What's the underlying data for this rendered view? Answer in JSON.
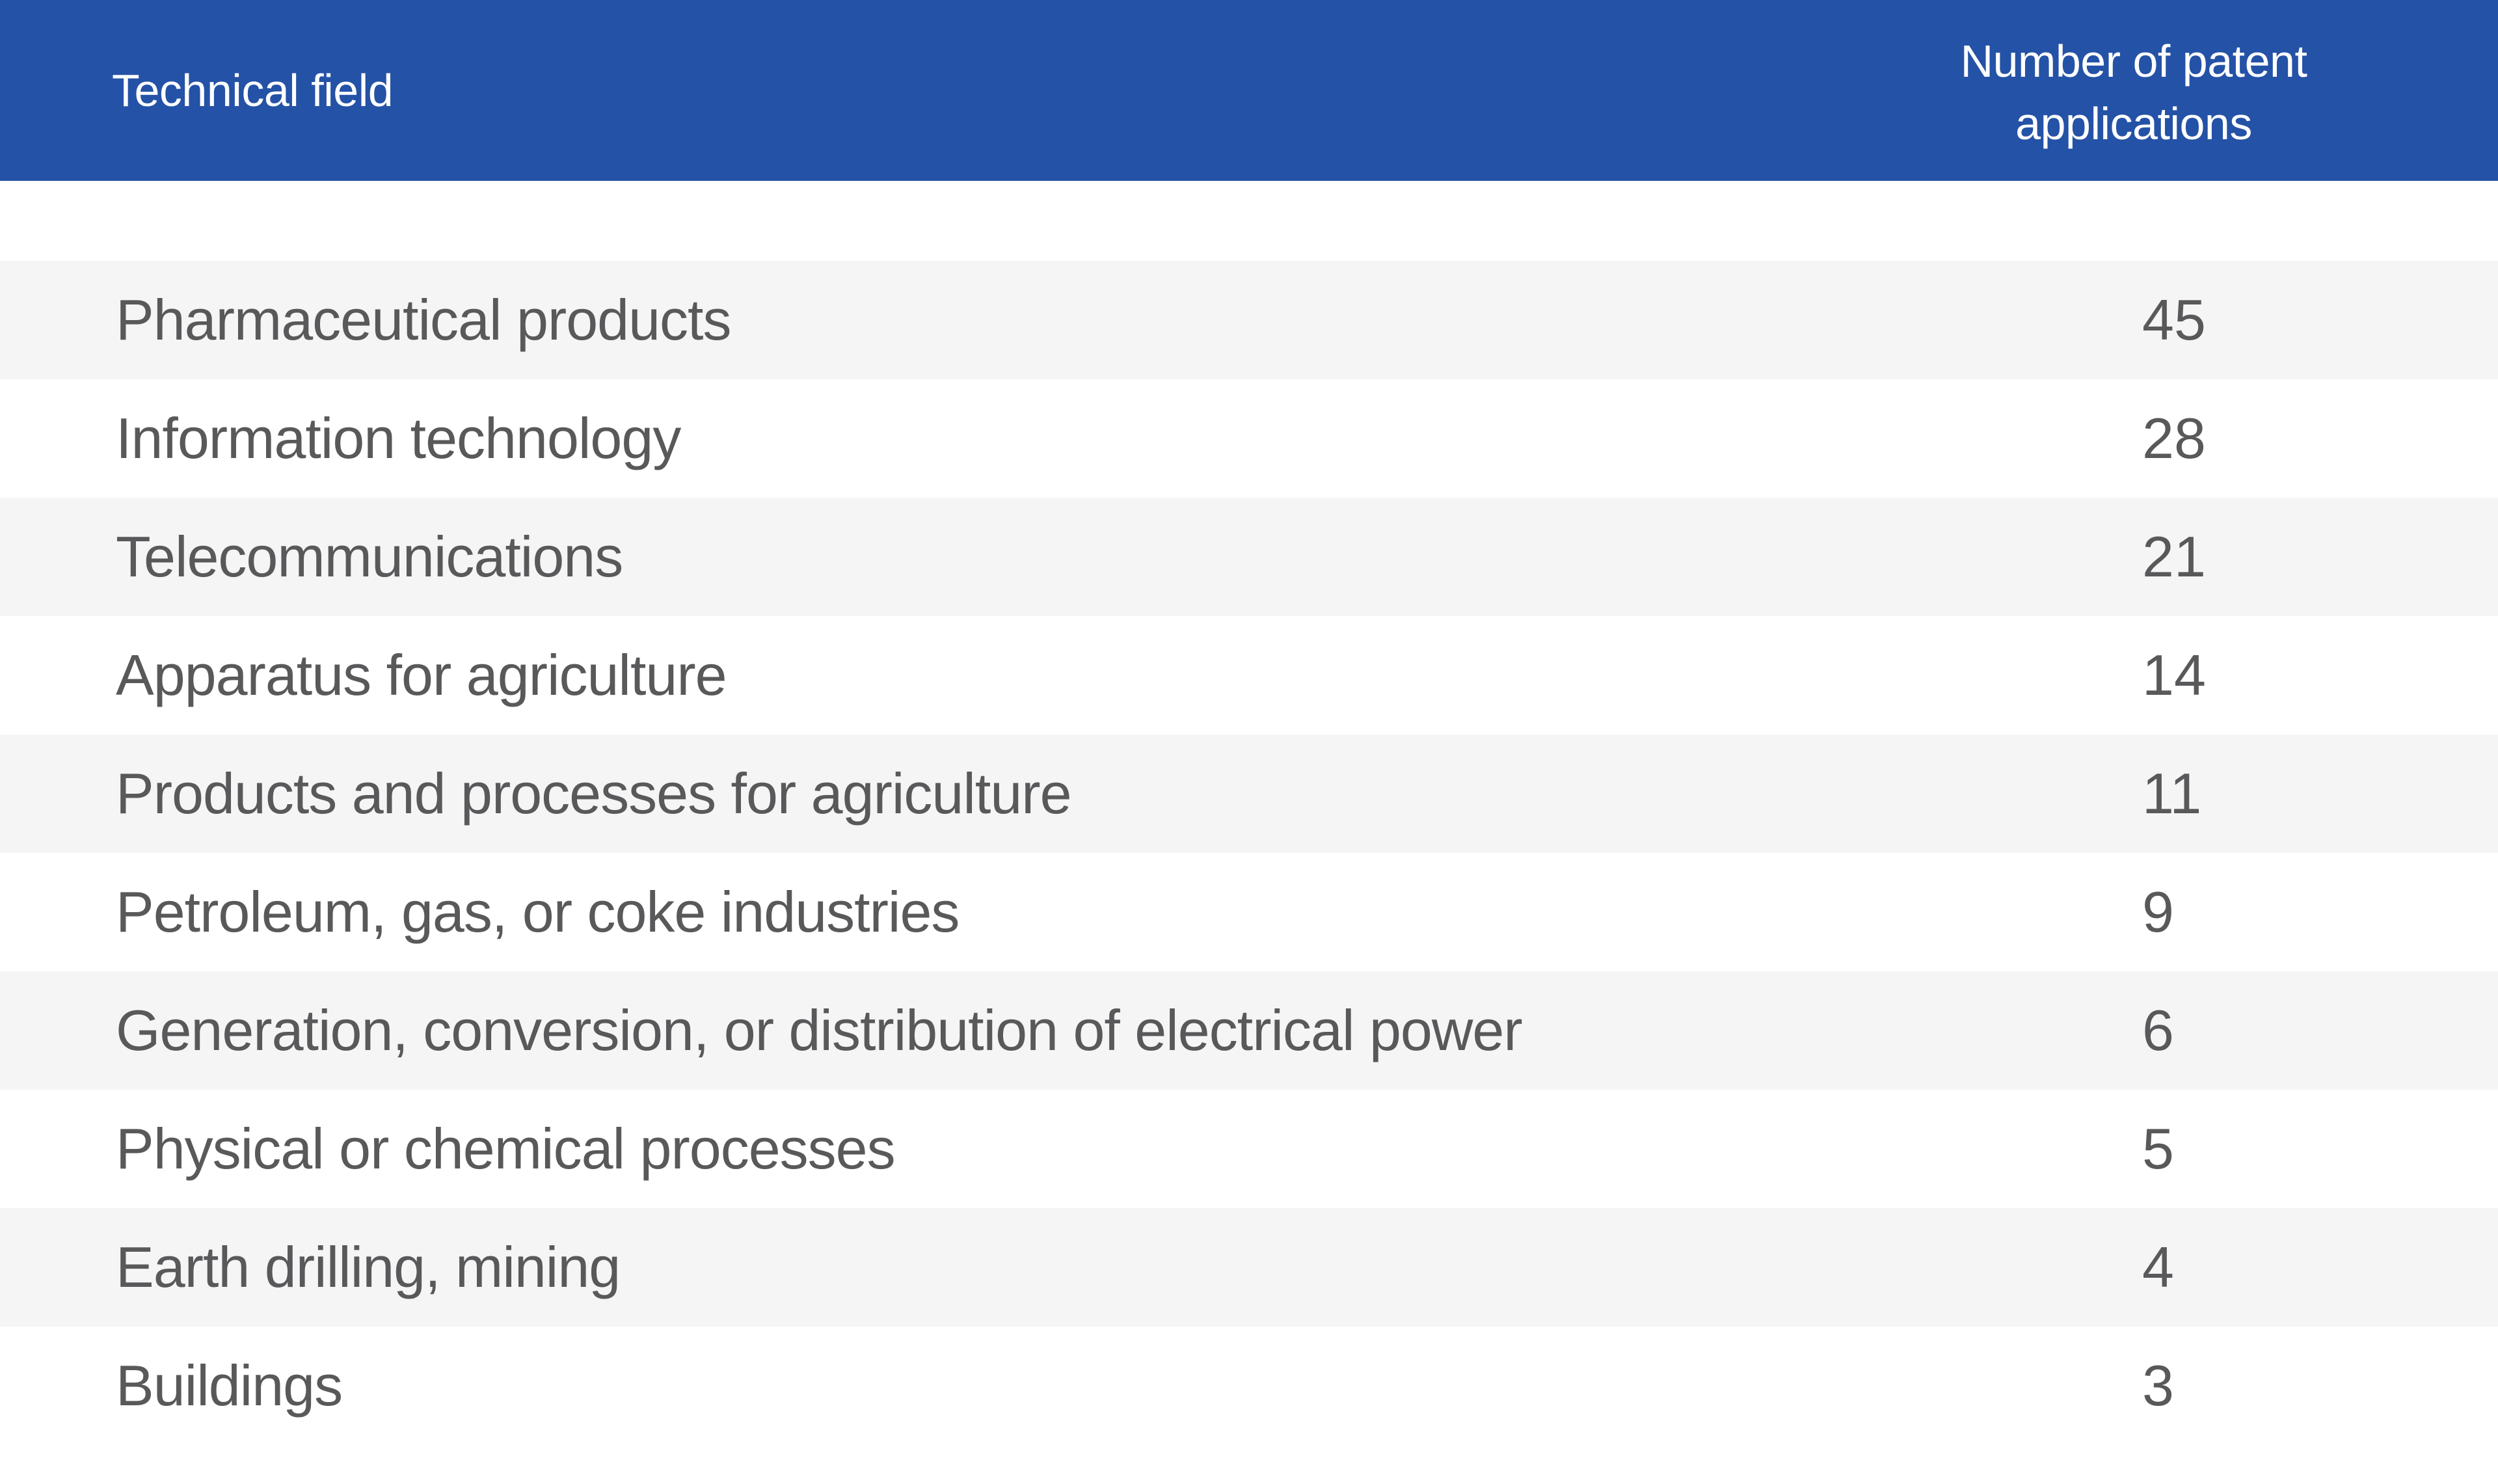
{
  "table": {
    "columns": [
      {
        "label": "Technical field"
      },
      {
        "label": "Number of patent applications"
      }
    ],
    "rows": [
      {
        "field": "Pharmaceutical products",
        "value": "45"
      },
      {
        "field": "Information technology",
        "value": "28"
      },
      {
        "field": "Telecommunications",
        "value": "21"
      },
      {
        "field": "Apparatus for agriculture",
        "value": "14"
      },
      {
        "field": "Products and processes for agriculture",
        "value": "11"
      },
      {
        "field": "Petroleum, gas, or coke industries",
        "value": "9"
      },
      {
        "field": "Generation, conversion, or distribution of electrical power",
        "value": "6"
      },
      {
        "field": "Physical or chemical processes",
        "value": "5"
      },
      {
        "field": "Earth drilling, mining",
        "value": "4"
      },
      {
        "field": "Buildings",
        "value": "3"
      }
    ],
    "colors": {
      "header_bg": "#2452a6",
      "header_text": "#ffffff",
      "row_alt_bg": "#f5f5f6",
      "row_bg": "#ffffff",
      "body_text": "#59595b"
    }
  },
  "chart_data": {
    "type": "table",
    "title": "",
    "columns": [
      "Technical field",
      "Number of patent applications"
    ],
    "categories": [
      "Pharmaceutical products",
      "Information technology",
      "Telecommunications",
      "Apparatus for agriculture",
      "Products and processes for agriculture",
      "Petroleum, gas, or coke industries",
      "Generation, conversion, or distribution of electrical power",
      "Physical or chemical processes",
      "Earth drilling, mining",
      "Buildings"
    ],
    "values": [
      45,
      28,
      21,
      14,
      11,
      9,
      6,
      5,
      4,
      3
    ],
    "layout_hints": {
      "striped_rows": true,
      "header_background": "#2452a6",
      "value_column_alignment": "left-aligned at fixed x"
    }
  }
}
